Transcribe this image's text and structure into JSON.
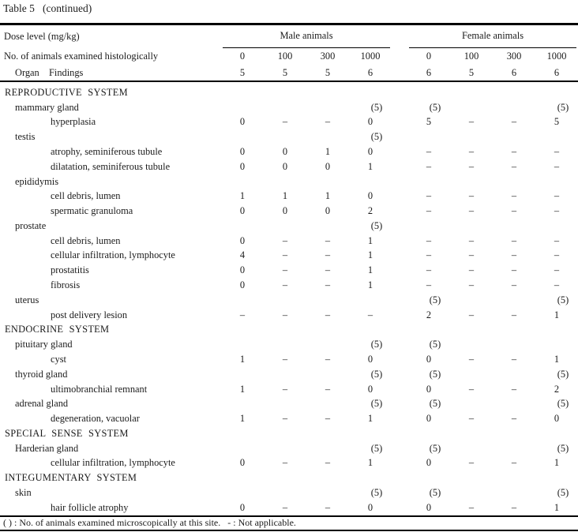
{
  "page": {
    "title": "Table 5   (continued)"
  },
  "colors": {
    "text": "#1b1b1b",
    "rule": "#000000",
    "background": "#ffffff"
  },
  "table": {
    "header": {
      "dose_level_label": "Dose level (mg/kg)",
      "animals_examined_label": "No. of animals examined histologically",
      "organ_label": "Organ",
      "findings_label": "Findings",
      "male_group_label": "Male animals",
      "female_group_label": "Female animals",
      "male_doses": [
        "0",
        "100",
        "300",
        "1000"
      ],
      "female_doses": [
        "0",
        "100",
        "300",
        "1000"
      ],
      "male_counts": [
        "5",
        "5",
        "5",
        "6"
      ],
      "female_counts": [
        "6",
        "5",
        "6",
        "6"
      ]
    },
    "rows": [
      {
        "type": "system",
        "label": "REPRODUCTIVE SYSTEM",
        "values": [
          "",
          "",
          "",
          "",
          "",
          "",
          "",
          ""
        ]
      },
      {
        "type": "organ",
        "label": "mammary gland",
        "values": [
          "",
          "",
          "",
          "(5)",
          "(5)",
          "",
          "",
          "(5)"
        ]
      },
      {
        "type": "finding",
        "label": "hyperplasia",
        "values": [
          "0",
          "–",
          "–",
          "0",
          "5",
          "–",
          "–",
          "5"
        ]
      },
      {
        "type": "organ",
        "label": "testis",
        "values": [
          "",
          "",
          "",
          "(5)",
          "",
          "",
          "",
          ""
        ]
      },
      {
        "type": "finding",
        "label": "atrophy, seminiferous tubule",
        "values": [
          "0",
          "0",
          "1",
          "0",
          "–",
          "–",
          "–",
          "–"
        ]
      },
      {
        "type": "finding",
        "label": "dilatation, seminiferous tubule",
        "values": [
          "0",
          "0",
          "0",
          "1",
          "–",
          "–",
          "–",
          "–"
        ]
      },
      {
        "type": "organ",
        "label": "epididymis",
        "values": [
          "",
          "",
          "",
          "",
          "",
          "",
          "",
          ""
        ]
      },
      {
        "type": "finding",
        "label": "cell debris, lumen",
        "values": [
          "1",
          "1",
          "1",
          "0",
          "–",
          "–",
          "–",
          "–"
        ]
      },
      {
        "type": "finding",
        "label": "spermatic granuloma",
        "values": [
          "0",
          "0",
          "0",
          "2",
          "–",
          "–",
          "–",
          "–"
        ]
      },
      {
        "type": "organ",
        "label": "prostate",
        "values": [
          "",
          "",
          "",
          "(5)",
          "",
          "",
          "",
          ""
        ]
      },
      {
        "type": "finding",
        "label": "cell debris, lumen",
        "values": [
          "0",
          "–",
          "–",
          "1",
          "–",
          "–",
          "–",
          "–"
        ]
      },
      {
        "type": "finding",
        "label": "cellular infiltration, lymphocyte",
        "values": [
          "4",
          "–",
          "–",
          "1",
          "–",
          "–",
          "–",
          "–"
        ]
      },
      {
        "type": "finding",
        "label": "prostatitis",
        "values": [
          "0",
          "–",
          "–",
          "1",
          "–",
          "–",
          "–",
          "–"
        ]
      },
      {
        "type": "finding",
        "label": "fibrosis",
        "values": [
          "0",
          "–",
          "–",
          "1",
          "–",
          "–",
          "–",
          "–"
        ]
      },
      {
        "type": "organ",
        "label": "uterus",
        "values": [
          "",
          "",
          "",
          "",
          "(5)",
          "",
          "",
          "(5)"
        ]
      },
      {
        "type": "finding",
        "label": "post delivery lesion",
        "values": [
          "–",
          "–",
          "–",
          "–",
          "2",
          "–",
          "–",
          "1"
        ]
      },
      {
        "type": "system",
        "label": "ENDOCRINE SYSTEM",
        "values": [
          "",
          "",
          "",
          "",
          "",
          "",
          "",
          ""
        ]
      },
      {
        "type": "organ",
        "label": "pituitary gland",
        "values": [
          "",
          "",
          "",
          "(5)",
          "(5)",
          "",
          "",
          ""
        ]
      },
      {
        "type": "finding",
        "label": "cyst",
        "values": [
          "1",
          "–",
          "–",
          "0",
          "0",
          "–",
          "–",
          "1"
        ]
      },
      {
        "type": "organ",
        "label": "thyroid gland",
        "values": [
          "",
          "",
          "",
          "(5)",
          "(5)",
          "",
          "",
          "(5)"
        ]
      },
      {
        "type": "finding",
        "label": "ultimobranchial remnant",
        "values": [
          "1",
          "–",
          "–",
          "0",
          "0",
          "–",
          "–",
          "2"
        ]
      },
      {
        "type": "organ",
        "label": "adrenal gland",
        "values": [
          "",
          "",
          "",
          "(5)",
          "(5)",
          "",
          "",
          "(5)"
        ]
      },
      {
        "type": "finding",
        "label": "degeneration, vacuolar",
        "values": [
          "1",
          "–",
          "–",
          "1",
          "0",
          "–",
          "–",
          "0"
        ]
      },
      {
        "type": "system",
        "label": "SPECIAL SENSE SYSTEM",
        "values": [
          "",
          "",
          "",
          "",
          "",
          "",
          "",
          ""
        ]
      },
      {
        "type": "organ",
        "label": "Harderian gland",
        "values": [
          "",
          "",
          "",
          "(5)",
          "(5)",
          "",
          "",
          "(5)"
        ]
      },
      {
        "type": "finding",
        "label": "cellular infiltration, lymphocyte",
        "values": [
          "0",
          "–",
          "–",
          "1",
          "0",
          "–",
          "–",
          "1"
        ]
      },
      {
        "type": "system",
        "label": "INTEGUMENTARY SYSTEM",
        "values": [
          "",
          "",
          "",
          "",
          "",
          "",
          "",
          ""
        ]
      },
      {
        "type": "organ",
        "label": "skin",
        "values": [
          "",
          "",
          "",
          "(5)",
          "(5)",
          "",
          "",
          "(5)"
        ]
      },
      {
        "type": "finding",
        "label": "hair follicle atrophy",
        "values": [
          "0",
          "–",
          "–",
          "0",
          "0",
          "–",
          "–",
          "1"
        ]
      }
    ],
    "footnote": "( ) : No. of animals examined microscopically at this site.   - : Not applicable."
  }
}
